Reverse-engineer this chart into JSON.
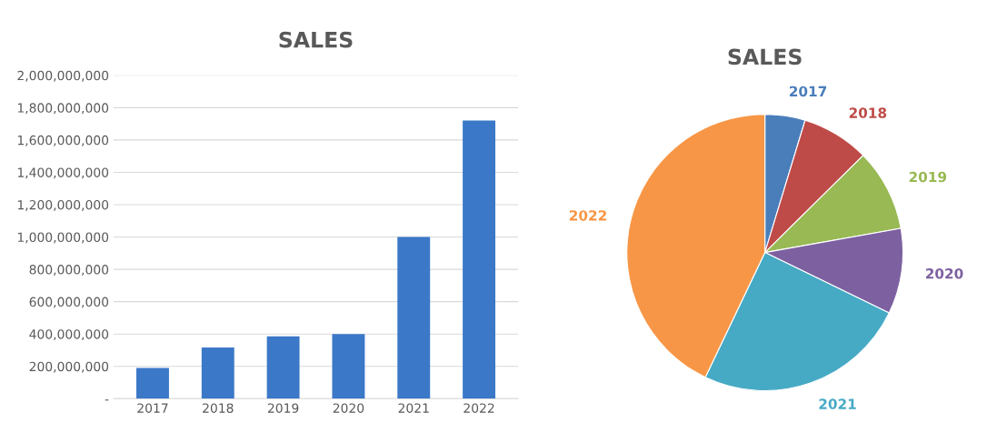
{
  "chart_data": [
    {
      "type": "bar",
      "title": "SALES",
      "categories": [
        "2017",
        "2018",
        "2019",
        "2020",
        "2021",
        "2022"
      ],
      "values": [
        190000000,
        317000000,
        385000000,
        400000000,
        1000000000,
        1720000000
      ],
      "color": "#3b78c8",
      "ylim": [
        0,
        2000000000
      ],
      "yticks": [
        {
          "value": 0,
          "label": "-"
        },
        {
          "value": 200000000,
          "label": "200,000,000"
        },
        {
          "value": 400000000,
          "label": "400,000,000"
        },
        {
          "value": 600000000,
          "label": "600,000,000"
        },
        {
          "value": 800000000,
          "label": "800,000,000"
        },
        {
          "value": 1000000000,
          "label": "1,000,000,000"
        },
        {
          "value": 1200000000,
          "label": "1,200,000,000"
        },
        {
          "value": 1400000000,
          "label": "1,400,000,000"
        },
        {
          "value": 1600000000,
          "label": "1,600,000,000"
        },
        {
          "value": 1800000000,
          "label": "1,800,000,000"
        },
        {
          "value": 2000000000,
          "label": "2,000,000,000"
        }
      ],
      "grid": "y"
    },
    {
      "type": "pie",
      "title": "SALES",
      "categories": [
        "2017",
        "2018",
        "2019",
        "2020",
        "2021",
        "2022"
      ],
      "values": [
        4.7,
        7.9,
        9.6,
        10.0,
        24.9,
        42.9
      ],
      "colors": [
        "#4a7ebb",
        "#be4b48",
        "#98b954",
        "#7d60a0",
        "#46aac5",
        "#f79646"
      ]
    }
  ]
}
